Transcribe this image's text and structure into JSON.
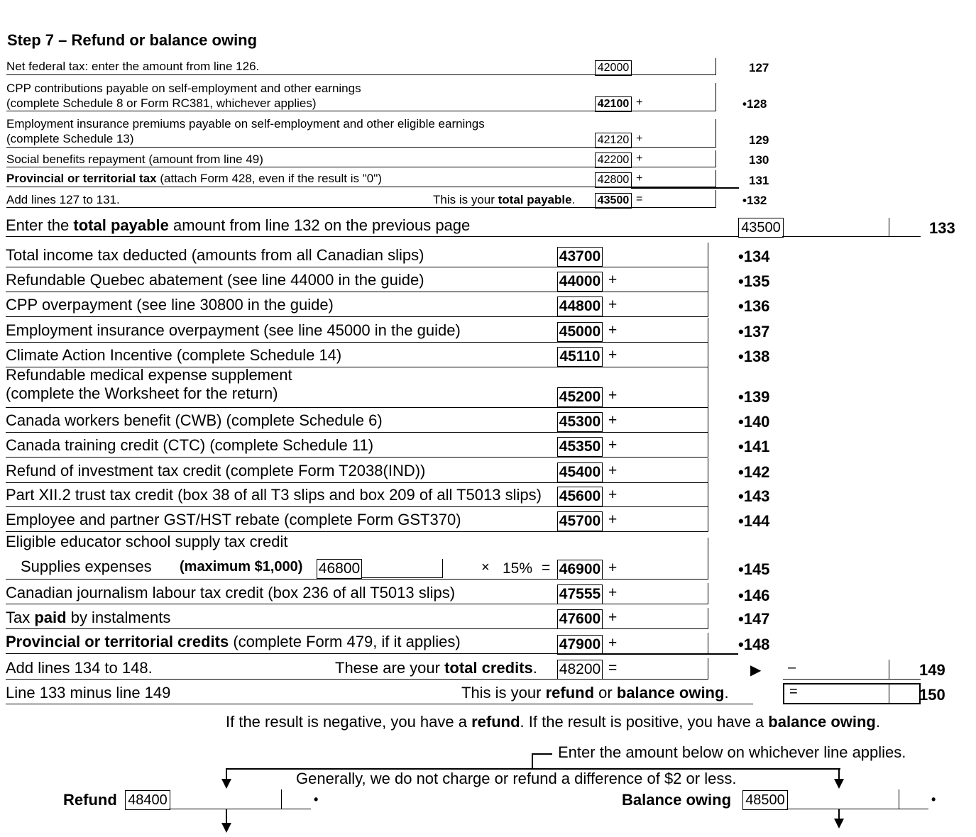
{
  "title": "Step 7 – Refund or balance owing",
  "part1": [
    {
      "label": "Net federal tax: enter the amount from line 126.",
      "code": "42000",
      "op": "",
      "line": "127",
      "bold_code": false
    },
    {
      "label1": "CPP contributions payable on self-employment and other earnings",
      "label2": "(complete Schedule 8 or Form RC381, whichever applies)",
      "code": "42100",
      "op": "+",
      "line": "•128",
      "bold_code": true
    },
    {
      "label1": "Employment insurance premiums payable on self-employment and other eligible earnings",
      "label2": "(complete Schedule 13)",
      "code": "42120",
      "op": "+",
      "line": "129"
    },
    {
      "label": "Social benefits repayment (amount from line 49)",
      "code": "42200",
      "op": "+",
      "line": "130"
    },
    {
      "label_bold": "Provincial or territorial tax",
      "label_rest": " (attach Form 428, even if the result is \"0\")",
      "code": "42800",
      "op": "+",
      "line": "131"
    },
    {
      "label": "Add lines 127 to 131.",
      "right_pre": "This is your ",
      "right_bold": "total payable",
      "right_post": ".",
      "code": "43500",
      "op": "=",
      "line": "•132"
    }
  ],
  "total_payable": {
    "pre": "Enter the ",
    "bold": "total payable",
    "post": " amount from line 132 on the previous page",
    "code": "43500",
    "line": "133"
  },
  "part2": [
    {
      "label": "Total income tax deducted (amounts from all Canadian slips)",
      "code": "43700",
      "op": "",
      "line": "•134"
    },
    {
      "label": "Refundable Quebec abatement (see line 44000 in the guide)",
      "code": "44000",
      "op": "+",
      "line": "•135"
    },
    {
      "label": "CPP overpayment (see line 30800 in the guide)",
      "code": "44800",
      "op": "+",
      "line": "•136"
    },
    {
      "label": "Employment insurance overpayment (see line 45000 in the guide)",
      "code": "45000",
      "op": "+",
      "line": "•137"
    },
    {
      "label": "Climate Action Incentive (complete Schedule 14)",
      "code": "45110",
      "op": "+",
      "line": "•138"
    },
    {
      "label1": "Refundable medical expense supplement",
      "label2": "(complete the Worksheet for the return)",
      "code": "45200",
      "op": "+",
      "line": "•139"
    },
    {
      "label": "Canada workers benefit (CWB) (complete Schedule 6)",
      "code": "45300",
      "op": "+",
      "line": "•140"
    },
    {
      "label": "Canada training credit (CTC) (complete Schedule 11)",
      "code": "45350",
      "op": "+",
      "line": "•141"
    },
    {
      "label": "Refund of investment tax credit (complete Form T2038(IND))",
      "code": "45400",
      "op": "+",
      "line": "•142"
    },
    {
      "label": "Part XII.2 trust tax credit (box 38 of all T3 slips and box 209 of all T5013 slips)",
      "code": "45600",
      "op": "+",
      "line": "•143"
    },
    {
      "label": "Employee and partner GST/HST rebate (complete Form GST370)",
      "code": "45700",
      "op": "+",
      "line": "•144"
    }
  ],
  "educator": {
    "label": "Eligible educator school supply tax credit",
    "sub_label": "Supplies expenses",
    "max": "(maximum $1,000)",
    "sub_code": "46800",
    "times": "×",
    "pct": "15%",
    "eq": "=",
    "code": "46900",
    "op": "+",
    "line": "•145"
  },
  "part3": [
    {
      "label": "Canadian journalism labour tax credit (box 236 of all T5013 slips)",
      "code": "47555",
      "op": "+",
      "line": "•146"
    },
    {
      "pre": "Tax ",
      "bold": "paid",
      "post": " by instalments",
      "code": "47600",
      "op": "+",
      "line": "•147"
    },
    {
      "bold": "Provincial or territorial credits",
      "post": " (complete Form 479, if it applies)",
      "code": "47900",
      "op": "+",
      "line": "•148"
    }
  ],
  "total_credits": {
    "label": "Add lines 134 to 148.",
    "pre": "These are your ",
    "bold": "total credits",
    "post": ".",
    "code": "48200",
    "op": "=",
    "arrow": "▶",
    "minus": "–",
    "line": "149"
  },
  "refund_owing": {
    "label": "Line 133 minus line 149",
    "pre": "This is your ",
    "b1": "refund",
    "mid": " or ",
    "b2": "balance owing",
    "post": ".",
    "eq": "=",
    "line": "150"
  },
  "note1": {
    "pre": "If the result is negative, you have a ",
    "b1": "refund",
    "mid": ". If the result is positive, you have a ",
    "b2": "balance owing",
    "post": "."
  },
  "note2": "Enter the amount below on whichever line applies.",
  "note3": "Generally, we do not charge or refund a difference of $2 or less.",
  "refund": {
    "label": "Refund",
    "code": "48400",
    "dot": "•"
  },
  "balance": {
    "label": "Balance owing",
    "code": "48500",
    "dot": "•"
  }
}
